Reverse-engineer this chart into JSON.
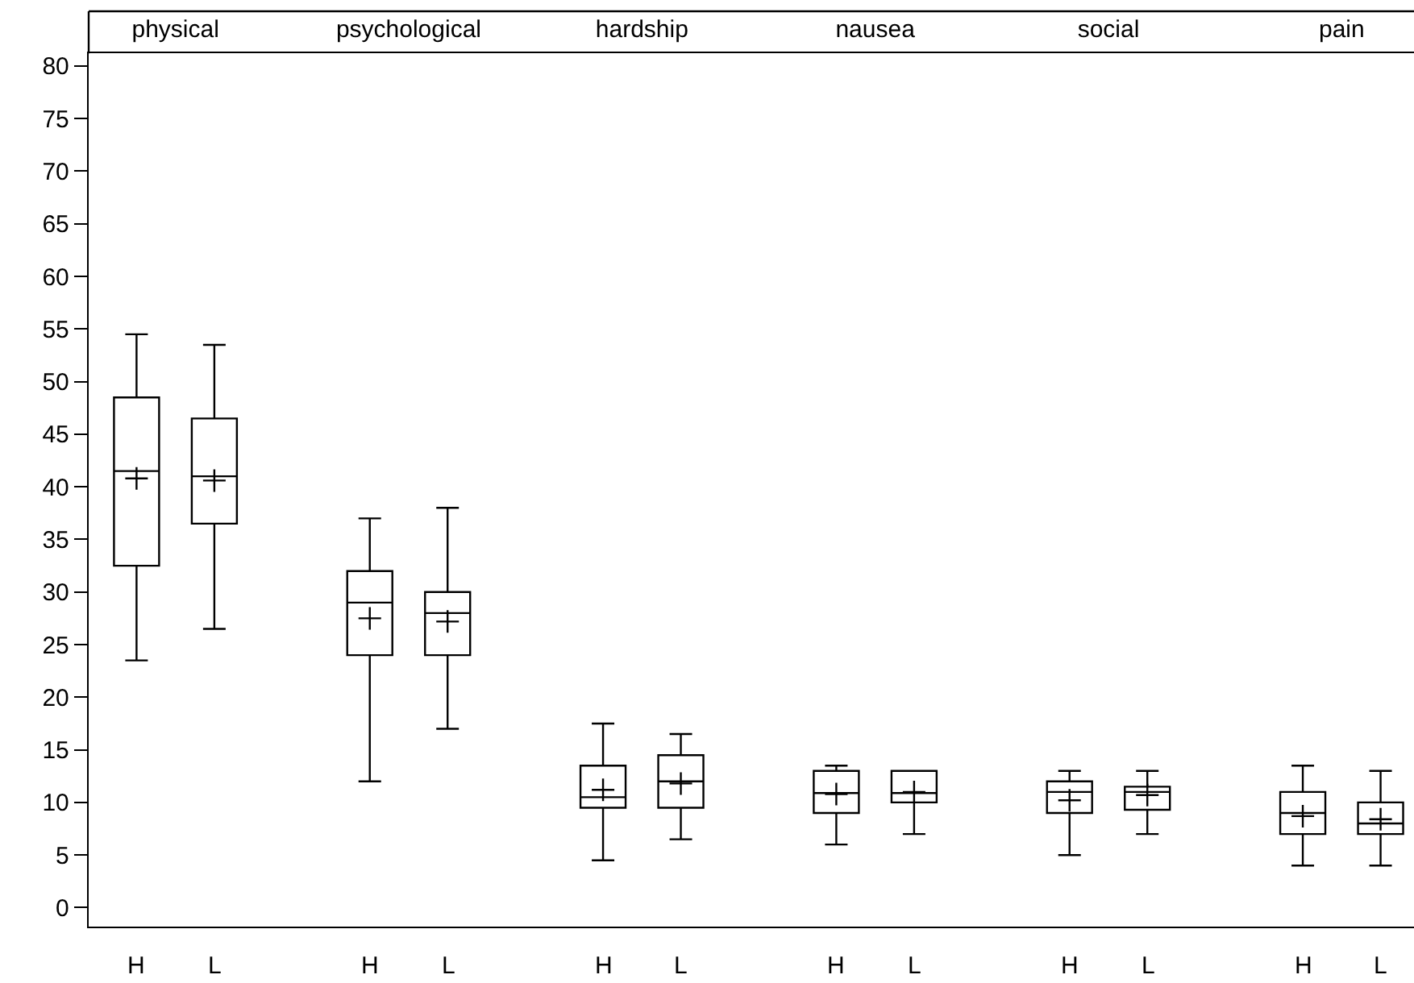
{
  "chart_data": {
    "type": "box",
    "categories": [
      "physical",
      "psychological",
      "hardship",
      "nausea",
      "social",
      "pain"
    ],
    "series": [
      {
        "name": "H",
        "color": "#000000",
        "boxes": [
          {
            "low": 23.5,
            "q1": 32.5,
            "median": 41.5,
            "q3": 48.5,
            "high": 54.5,
            "mean": 40.8
          },
          {
            "low": 12,
            "q1": 24,
            "median": 29,
            "q3": 32,
            "high": 37,
            "mean": 27.5
          },
          {
            "low": 4.5,
            "q1": 9.5,
            "median": 10.5,
            "q3": 13.5,
            "high": 17.5,
            "mean": 11.2
          },
          {
            "low": 6,
            "q1": 9,
            "median": 10.9,
            "q3": 13,
            "high": 13.5,
            "mean": 10.8
          },
          {
            "low": 5,
            "q1": 9,
            "median": 11,
            "q3": 12,
            "high": 13,
            "mean": 10.2
          },
          {
            "low": 4,
            "q1": 7,
            "median": 9,
            "q3": 11,
            "high": 13.5,
            "mean": 8.7
          }
        ]
      },
      {
        "name": "L",
        "color": "#000000",
        "boxes": [
          {
            "low": 26.5,
            "q1": 36.5,
            "median": 41,
            "q3": 46.5,
            "high": 53.5,
            "mean": 40.6
          },
          {
            "low": 17,
            "q1": 24,
            "median": 28,
            "q3": 30,
            "high": 38,
            "mean": 27.2
          },
          {
            "low": 6.5,
            "q1": 9.5,
            "median": 12,
            "q3": 14.5,
            "high": 16.5,
            "mean": 11.8
          },
          {
            "low": 7,
            "q1": 10,
            "median": 10.9,
            "q3": 13,
            "high": 13,
            "mean": 11
          },
          {
            "low": 7,
            "q1": 9.3,
            "median": 11,
            "q3": 11.5,
            "high": 13,
            "mean": 10.7
          },
          {
            "low": 4,
            "q1": 7,
            "median": 8,
            "q3": 10,
            "high": 13,
            "mean": 8.4
          }
        ]
      }
    ],
    "ylim": [
      -1.8,
      81.2
    ],
    "yticks": [
      0,
      5,
      10,
      15,
      20,
      25,
      30,
      35,
      40,
      45,
      50,
      55,
      60,
      65,
      70,
      75,
      80
    ]
  }
}
